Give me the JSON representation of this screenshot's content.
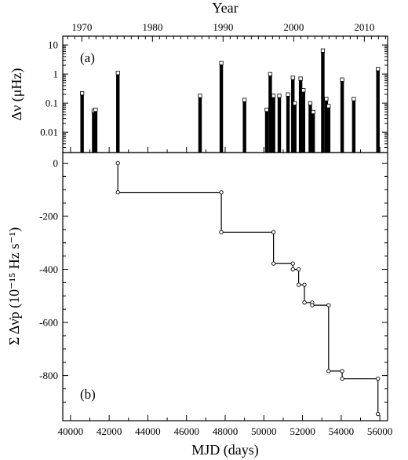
{
  "chart_data": [
    {
      "type": "bar",
      "panel_label": "(a)",
      "ylabel": "Δν (μHz)",
      "top_xlabel": "Year",
      "yscale": "log",
      "ylim": [
        0.002,
        20
      ],
      "xlim": [
        39600,
        56400
      ],
      "yticks": [
        0.01,
        0.1,
        1,
        10
      ],
      "ytick_labels": [
        "0.01",
        "0.1",
        "1",
        "10"
      ],
      "year_ticks": [
        1970,
        1980,
        1990,
        2000,
        2010
      ],
      "year_tick_labels": [
        "1970",
        "1980",
        "1990",
        "2000",
        "2010"
      ],
      "x": [
        40600,
        41200,
        41300,
        42450,
        46700,
        47800,
        49000,
        50150,
        50330,
        50500,
        50800,
        51250,
        51500,
        51600,
        51900,
        52050,
        52400,
        52550,
        53050,
        53230,
        53350,
        54050,
        54650,
        55900
      ],
      "values": [
        0.22,
        0.055,
        0.06,
        1.1,
        0.18,
        2.4,
        0.13,
        0.06,
        1.0,
        0.18,
        0.18,
        0.2,
        0.75,
        0.1,
        0.7,
        0.28,
        0.1,
        0.05,
        6.5,
        0.14,
        0.08,
        0.65,
        0.14,
        1.5
      ]
    },
    {
      "type": "line",
      "panel_label": "(b)",
      "xlabel": "MJD (days)",
      "ylabel": "Σ Δν̇p (10⁻¹⁵ Hz s⁻¹)",
      "xlim": [
        39600,
        56400
      ],
      "ylim": [
        -970,
        40
      ],
      "xticks": [
        40000,
        42000,
        44000,
        46000,
        48000,
        50000,
        52000,
        54000,
        56000
      ],
      "xtick_labels": [
        "40000",
        "42000",
        "44000",
        "46000",
        "48000",
        "50000",
        "52000",
        "54000",
        "56000"
      ],
      "yticks": [
        0,
        -200,
        -400,
        -600,
        -800
      ],
      "ytick_labels": [
        "0",
        "-200",
        "-400",
        "-600",
        "-800"
      ],
      "x": [
        42450,
        42450,
        47800,
        47800,
        50500,
        50500,
        51500,
        51500,
        51800,
        51800,
        52100,
        52100,
        52500,
        52500,
        53350,
        53350,
        54050,
        54050,
        55900,
        55900
      ],
      "y": [
        0,
        -110,
        -110,
        -260,
        -260,
        -378,
        -378,
        -400,
        -400,
        -458,
        -458,
        -525,
        -525,
        -535,
        -535,
        -783,
        -783,
        -812,
        -812,
        -945
      ]
    }
  ]
}
